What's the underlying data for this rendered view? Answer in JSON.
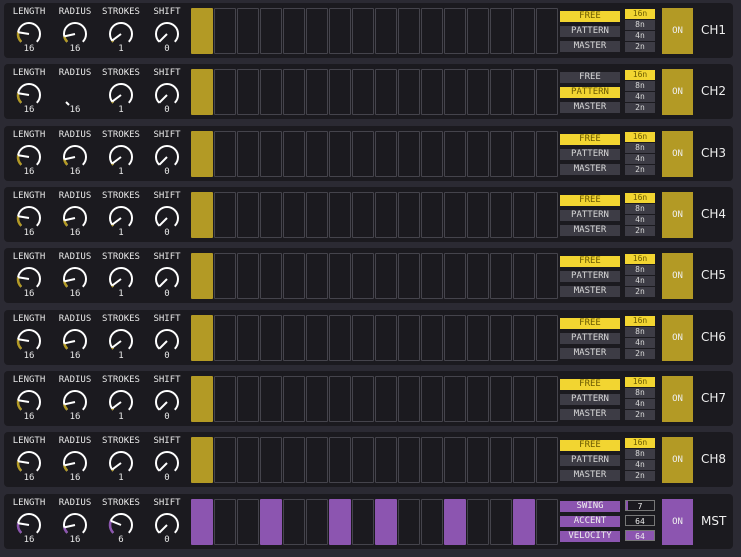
{
  "colors": {
    "channel_accent": "#b39a25",
    "selected_button": "#f2d531",
    "selected_text": "#6b5a00",
    "master_accent": "#8c55b0",
    "knob": "#ffffff"
  },
  "knob_labels": [
    "LENGTH",
    "RADIUS",
    "STROKES",
    "SHIFT"
  ],
  "channels": [
    {
      "label": "CH1",
      "knobs": [
        {
          "value": "16",
          "level": 0.2
        },
        {
          "value": "16",
          "level": 0.12
        },
        {
          "value": "1",
          "level": 0.03
        },
        {
          "value": "0",
          "level": 0
        }
      ],
      "steps": [
        1,
        0,
        0,
        0,
        0,
        0,
        0,
        0,
        0,
        0,
        0,
        0,
        0,
        0,
        0,
        0
      ],
      "modes": [
        "FREE",
        "PATTERN",
        "MASTER"
      ],
      "mode_selected": 0,
      "rates": [
        "16n",
        "8n",
        "4n",
        "2n"
      ],
      "rate_selected": 0,
      "on_label": "ON"
    },
    {
      "label": "CH2",
      "knobs": [
        {
          "value": "16",
          "level": 0.2
        },
        {
          "value": "16",
          "level": 0,
          "hidden": true
        },
        {
          "value": "1",
          "level": 0.03
        },
        {
          "value": "0",
          "level": 0
        }
      ],
      "steps": [
        1,
        0,
        0,
        0,
        0,
        0,
        0,
        0,
        0,
        0,
        0,
        0,
        0,
        0,
        0,
        0
      ],
      "modes": [
        "FREE",
        "PATTERN",
        "MASTER"
      ],
      "mode_selected": 1,
      "rates": [
        "16n",
        "8n",
        "4n",
        "2n"
      ],
      "rate_selected": 0,
      "on_label": "ON"
    },
    {
      "label": "CH3",
      "knobs": [
        {
          "value": "16",
          "level": 0.2
        },
        {
          "value": "16",
          "level": 0.12
        },
        {
          "value": "1",
          "level": 0.03
        },
        {
          "value": "0",
          "level": 0
        }
      ],
      "steps": [
        1,
        0,
        0,
        0,
        0,
        0,
        0,
        0,
        0,
        0,
        0,
        0,
        0,
        0,
        0,
        0
      ],
      "modes": [
        "FREE",
        "PATTERN",
        "MASTER"
      ],
      "mode_selected": 0,
      "rates": [
        "16n",
        "8n",
        "4n",
        "2n"
      ],
      "rate_selected": 0,
      "on_label": "ON"
    },
    {
      "label": "CH4",
      "knobs": [
        {
          "value": "16",
          "level": 0.2
        },
        {
          "value": "16",
          "level": 0.12
        },
        {
          "value": "1",
          "level": 0.03
        },
        {
          "value": "0",
          "level": 0
        }
      ],
      "steps": [
        1,
        0,
        0,
        0,
        0,
        0,
        0,
        0,
        0,
        0,
        0,
        0,
        0,
        0,
        0,
        0
      ],
      "modes": [
        "FREE",
        "PATTERN",
        "MASTER"
      ],
      "mode_selected": 0,
      "rates": [
        "16n",
        "8n",
        "4n",
        "2n"
      ],
      "rate_selected": 0,
      "on_label": "ON"
    },
    {
      "label": "CH5",
      "knobs": [
        {
          "value": "16",
          "level": 0.2
        },
        {
          "value": "16",
          "level": 0.12
        },
        {
          "value": "1",
          "level": 0.03
        },
        {
          "value": "0",
          "level": 0
        }
      ],
      "steps": [
        1,
        0,
        0,
        0,
        0,
        0,
        0,
        0,
        0,
        0,
        0,
        0,
        0,
        0,
        0,
        0
      ],
      "modes": [
        "FREE",
        "PATTERN",
        "MASTER"
      ],
      "mode_selected": 0,
      "rates": [
        "16n",
        "8n",
        "4n",
        "2n"
      ],
      "rate_selected": 0,
      "on_label": "ON"
    },
    {
      "label": "CH6",
      "knobs": [
        {
          "value": "16",
          "level": 0.2
        },
        {
          "value": "16",
          "level": 0.12
        },
        {
          "value": "1",
          "level": 0.03
        },
        {
          "value": "0",
          "level": 0
        }
      ],
      "steps": [
        1,
        0,
        0,
        0,
        0,
        0,
        0,
        0,
        0,
        0,
        0,
        0,
        0,
        0,
        0,
        0
      ],
      "modes": [
        "FREE",
        "PATTERN",
        "MASTER"
      ],
      "mode_selected": 0,
      "rates": [
        "16n",
        "8n",
        "4n",
        "2n"
      ],
      "rate_selected": 0,
      "on_label": "ON"
    },
    {
      "label": "CH7",
      "knobs": [
        {
          "value": "16",
          "level": 0.2
        },
        {
          "value": "16",
          "level": 0.12
        },
        {
          "value": "1",
          "level": 0.03
        },
        {
          "value": "0",
          "level": 0
        }
      ],
      "steps": [
        1,
        0,
        0,
        0,
        0,
        0,
        0,
        0,
        0,
        0,
        0,
        0,
        0,
        0,
        0,
        0
      ],
      "modes": [
        "FREE",
        "PATTERN",
        "MASTER"
      ],
      "mode_selected": 0,
      "rates": [
        "16n",
        "8n",
        "4n",
        "2n"
      ],
      "rate_selected": 0,
      "on_label": "ON"
    },
    {
      "label": "CH8",
      "knobs": [
        {
          "value": "16",
          "level": 0.2
        },
        {
          "value": "16",
          "level": 0.12
        },
        {
          "value": "1",
          "level": 0.03
        },
        {
          "value": "0",
          "level": 0
        }
      ],
      "steps": [
        1,
        0,
        0,
        0,
        0,
        0,
        0,
        0,
        0,
        0,
        0,
        0,
        0,
        0,
        0,
        0
      ],
      "modes": [
        "FREE",
        "PATTERN",
        "MASTER"
      ],
      "mode_selected": 0,
      "rates": [
        "16n",
        "8n",
        "4n",
        "2n"
      ],
      "rate_selected": 0,
      "on_label": "ON"
    }
  ],
  "master": {
    "label": "MST",
    "knobs": [
      {
        "value": "16",
        "level": 0.2
      },
      {
        "value": "16",
        "level": 0.12
      },
      {
        "value": "6",
        "level": 0.25
      },
      {
        "value": "0",
        "level": 0
      }
    ],
    "steps": [
      1,
      0,
      0,
      1,
      0,
      0,
      1,
      0,
      1,
      0,
      0,
      1,
      0,
      0,
      1,
      0
    ],
    "params": [
      {
        "label": "SWING",
        "value": "7",
        "fill": 0.07
      },
      {
        "label": "ACCENT",
        "value": "64",
        "fill": 0
      },
      {
        "label": "VELOCITY",
        "value": "64",
        "fill": 1
      }
    ],
    "on_label": "ON"
  }
}
